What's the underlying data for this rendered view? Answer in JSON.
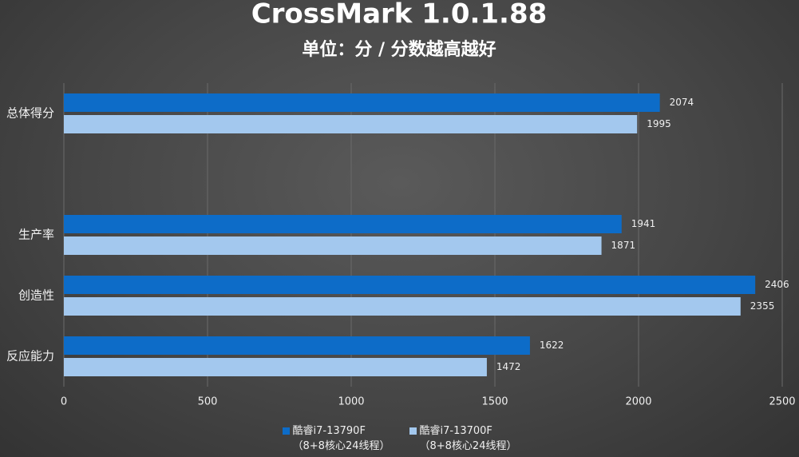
{
  "chart_data": {
    "type": "bar",
    "orientation": "horizontal",
    "title": "CrossMark 1.0.1.88",
    "subtitle": "单位：分 / 分数越高越好",
    "categories": [
      "总体得分",
      null,
      "生产率",
      "创造性",
      "反应能力"
    ],
    "series": [
      {
        "name": "酷睿i7-13790F\n（8+8核心24线程）",
        "color": "#0d6cc8",
        "values": [
          2074,
          null,
          1941,
          2406,
          1622
        ]
      },
      {
        "name": "酷睿i7-13700F\n（8+8核心24线程）",
        "color": "#a3c8ee",
        "values": [
          1995,
          null,
          1871,
          2355,
          1472
        ]
      }
    ],
    "xlim": [
      0,
      2500
    ],
    "xticks": [
      0,
      500,
      1000,
      1500,
      2000,
      2500
    ],
    "grid": true
  }
}
